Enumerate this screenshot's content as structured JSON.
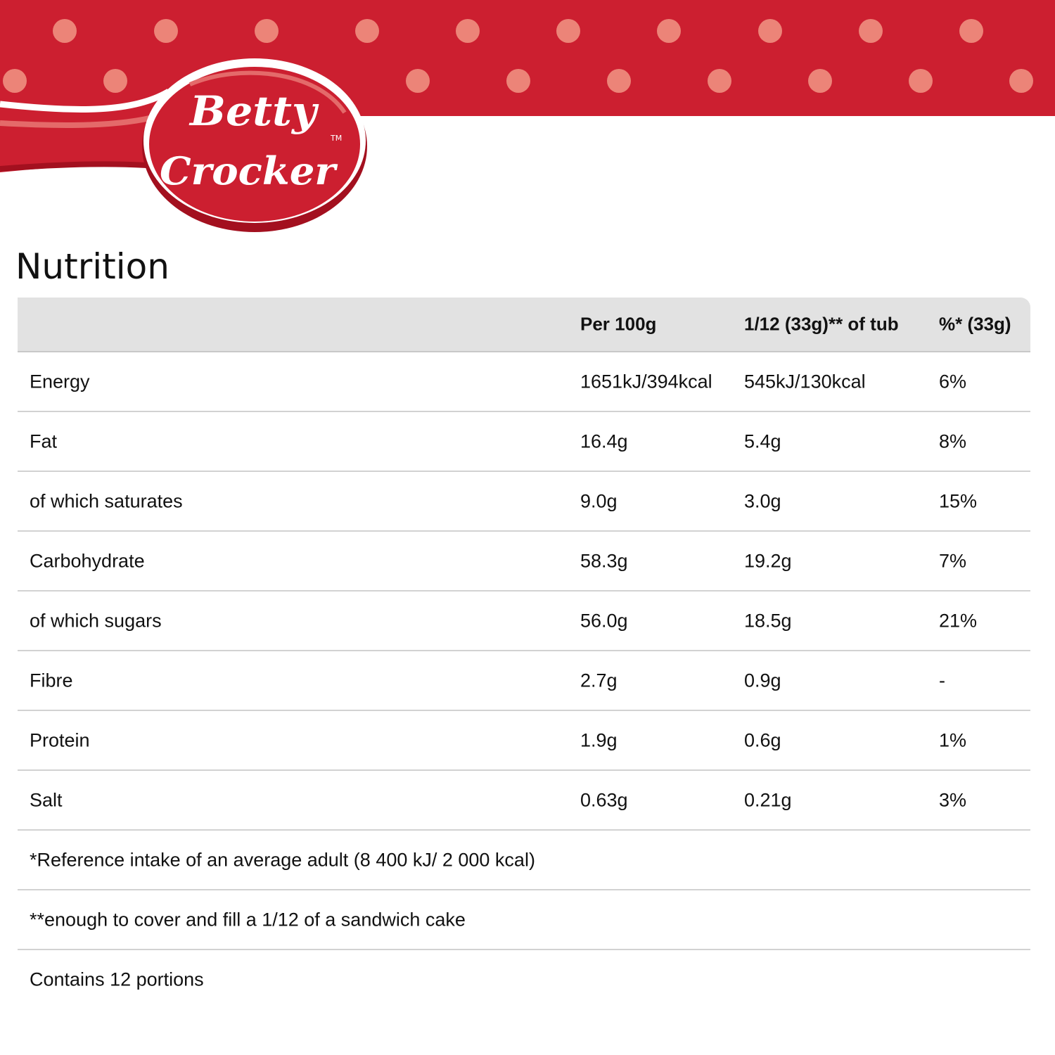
{
  "brand": {
    "logo_text": "Betty Crocker",
    "trademark": "TM",
    "colors": {
      "red": "#cc1f30",
      "dot": "#ec8478",
      "dark_red": "#a3101f"
    }
  },
  "title": "Nutrition",
  "table": {
    "headers": [
      "",
      "Per 100g",
      "1/12 (33g)** of tub",
      "%* (33g)"
    ],
    "rows": [
      [
        "Energy",
        "1651kJ/394kcal",
        "545kJ/130kcal",
        "6%"
      ],
      [
        "Fat",
        "16.4g",
        "5.4g",
        "8%"
      ],
      [
        "of which saturates",
        "9.0g",
        "3.0g",
        "15%"
      ],
      [
        "Carbohydrate",
        "58.3g",
        "19.2g",
        "7%"
      ],
      [
        "of which sugars",
        "56.0g",
        "18.5g",
        "21%"
      ],
      [
        "Fibre",
        "2.7g",
        "0.9g",
        "-"
      ],
      [
        "Protein",
        "1.9g",
        "0.6g",
        "1%"
      ],
      [
        "Salt",
        "0.63g",
        "0.21g",
        "3%"
      ]
    ],
    "notes": [
      "*Reference intake of an average adult (8 400 kJ/ 2 000 kcal)",
      "**enough to cover and fill a 1/12 of a sandwich cake",
      "Contains 12 portions"
    ]
  }
}
